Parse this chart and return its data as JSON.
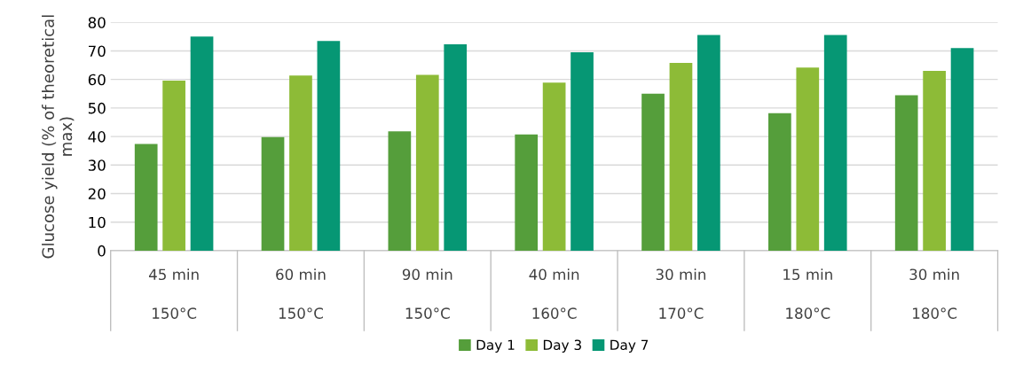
{
  "chart_data": {
    "type": "bar",
    "ylabel": "Glucose yield (% of theoretical\nmax)",
    "categories": [
      "45 min\n150°C",
      "60 min\n150°C",
      "90 min\n150°C",
      "40 min\n160°C",
      "30 min\n170°C",
      "15 min\n180°C",
      "30 min\n180°C"
    ],
    "series": [
      {
        "name": "Day 1",
        "color": "#559e3b",
        "values": [
          37.4,
          39.8,
          41.8,
          40.7,
          55.0,
          48.2,
          54.5
        ]
      },
      {
        "name": "Day 3",
        "color": "#8dbb37",
        "values": [
          59.6,
          61.4,
          61.6,
          58.9,
          65.8,
          64.2,
          63.0
        ]
      },
      {
        "name": "Day 7",
        "color": "#069774",
        "values": [
          75.0,
          73.5,
          72.3,
          69.5,
          75.6,
          75.6,
          71.0
        ]
      }
    ],
    "ylim": [
      0,
      80
    ],
    "yticks": [
      0,
      10,
      20,
      30,
      40,
      50,
      60,
      70,
      80
    ],
    "grid": "y",
    "legend": "bottom"
  }
}
